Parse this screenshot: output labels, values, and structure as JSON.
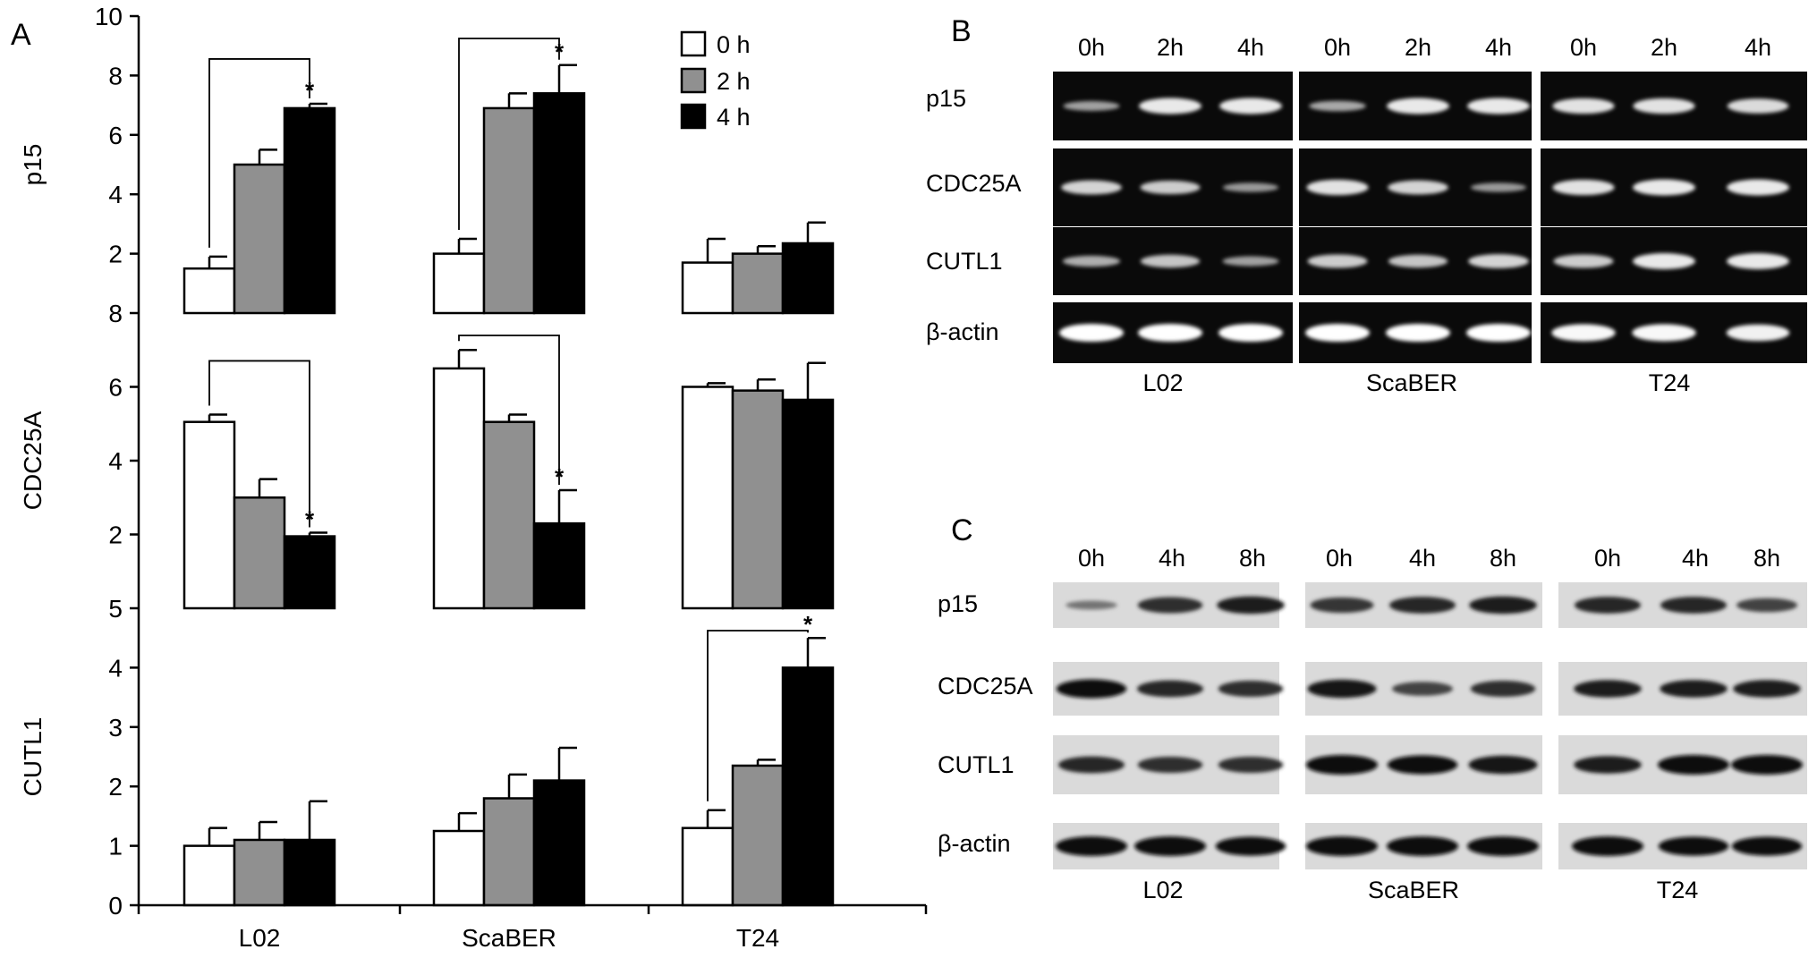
{
  "panels": {
    "a": {
      "letter": "A"
    },
    "b": {
      "letter": "B"
    },
    "c": {
      "letter": "C"
    }
  },
  "chart_data": [
    {
      "type": "bar",
      "panel": "A",
      "ylabel": "p15",
      "ylim": [
        0,
        10
      ],
      "yticks": [
        2,
        4,
        6,
        8,
        10
      ],
      "categories": [
        "L02",
        "ScaBER",
        "T24"
      ],
      "legend_position": "top-right",
      "series": [
        {
          "name": "0 h",
          "color": "#ffffff",
          "values": [
            1.5,
            2.0,
            1.7
          ],
          "errors": [
            0.4,
            0.5,
            0.8
          ]
        },
        {
          "name": "2 h",
          "color": "#909090",
          "values": [
            5.0,
            6.9,
            2.0
          ],
          "errors": [
            0.5,
            0.5,
            0.25
          ]
        },
        {
          "name": "4 h",
          "color": "#000000",
          "values": [
            6.9,
            7.4,
            2.35
          ],
          "errors": [
            0.15,
            0.95,
            0.7
          ]
        }
      ],
      "significance": [
        {
          "category": "L02",
          "from": "0 h",
          "to": "4 h",
          "mark": "*"
        },
        {
          "category": "ScaBER",
          "from": "0 h",
          "to": "4 h",
          "mark": "*"
        }
      ]
    },
    {
      "type": "bar",
      "panel": "A",
      "ylabel": "CDC25A",
      "ylim": [
        0,
        8
      ],
      "yticks": [
        2,
        4,
        6,
        8
      ],
      "categories": [
        "L02",
        "ScaBER",
        "T24"
      ],
      "series": [
        {
          "name": "0 h",
          "color": "#ffffff",
          "values": [
            5.05,
            6.5,
            6.0
          ],
          "errors": [
            0.2,
            0.5,
            0.1
          ]
        },
        {
          "name": "2 h",
          "color": "#909090",
          "values": [
            3.0,
            5.05,
            5.9
          ],
          "errors": [
            0.5,
            0.2,
            0.3
          ]
        },
        {
          "name": "4 h",
          "color": "#000000",
          "values": [
            1.95,
            2.3,
            5.65
          ],
          "errors": [
            0.1,
            0.9,
            1.0
          ]
        }
      ],
      "significance": [
        {
          "category": "L02",
          "from": "0 h",
          "to": "4 h",
          "mark": "*"
        },
        {
          "category": "ScaBER",
          "from": "0 h",
          "to": "4 h",
          "mark": "*"
        }
      ]
    },
    {
      "type": "bar",
      "panel": "A",
      "ylabel": "CUTL1",
      "ylim": [
        0,
        5
      ],
      "yticks": [
        0,
        1,
        2,
        3,
        4,
        5
      ],
      "categories": [
        "L02",
        "ScaBER",
        "T24"
      ],
      "series": [
        {
          "name": "0 h",
          "color": "#ffffff",
          "values": [
            1.0,
            1.25,
            1.3
          ],
          "errors": [
            0.3,
            0.3,
            0.3
          ]
        },
        {
          "name": "2 h",
          "color": "#909090",
          "values": [
            1.1,
            1.8,
            2.35
          ],
          "errors": [
            0.3,
            0.4,
            0.1
          ]
        },
        {
          "name": "4 h",
          "color": "#000000",
          "values": [
            1.1,
            2.1,
            4.0
          ],
          "errors": [
            0.65,
            0.55,
            0.5
          ]
        }
      ],
      "significance": [
        {
          "category": "T24",
          "from": "0 h",
          "to": "4 h",
          "mark": "*"
        }
      ]
    }
  ],
  "blot_b": {
    "time_labels": [
      "0h",
      "2h",
      "4h",
      "0h",
      "2h",
      "4h",
      "0h",
      "2h",
      "4h"
    ],
    "row_labels": [
      "p15",
      "CDC25A",
      "CUTL1",
      "β-actin"
    ],
    "group_labels": [
      "L02",
      "ScaBER",
      "T24"
    ],
    "band_intensity": [
      [
        0.35,
        0.85,
        0.85,
        0.4,
        0.85,
        0.85,
        0.8,
        0.8,
        0.75
      ],
      [
        0.7,
        0.65,
        0.3,
        0.8,
        0.7,
        0.3,
        0.8,
        0.85,
        0.85
      ],
      [
        0.45,
        0.6,
        0.35,
        0.65,
        0.6,
        0.7,
        0.65,
        0.85,
        0.85
      ],
      [
        1,
        1,
        1,
        1,
        1,
        1,
        0.95,
        0.95,
        0.9
      ]
    ]
  },
  "blot_c": {
    "time_labels": [
      "0h",
      "4h",
      "8h",
      "0h",
      "4h",
      "8h",
      "0h",
      "4h",
      "8h"
    ],
    "row_labels": [
      "p15",
      "CDC25A",
      "CUTL1",
      "β-actin"
    ],
    "group_labels": [
      "L02",
      "ScaBER",
      "T24"
    ],
    "band_intensity": [
      [
        0.25,
        0.75,
        0.85,
        0.7,
        0.8,
        0.85,
        0.8,
        0.8,
        0.6
      ],
      [
        0.95,
        0.8,
        0.75,
        0.9,
        0.6,
        0.75,
        0.85,
        0.85,
        0.85
      ],
      [
        0.8,
        0.75,
        0.75,
        1,
        0.95,
        0.9,
        0.85,
        1,
        1
      ],
      [
        1,
        1,
        0.95,
        1,
        1,
        1,
        1,
        0.95,
        0.95
      ]
    ]
  }
}
